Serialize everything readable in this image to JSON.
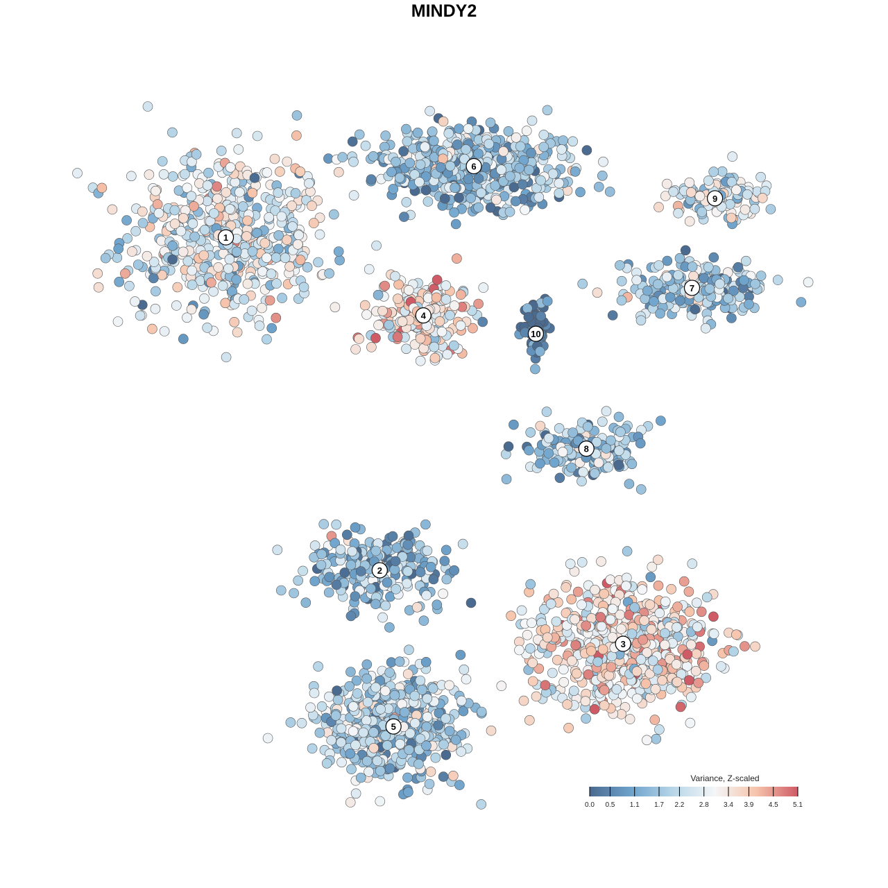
{
  "chart_data": {
    "type": "scatter",
    "title": "MINDY2",
    "colorbar": {
      "title": "Variance, Z-scaled",
      "ticks": [
        "0.0",
        "0.5",
        "1.1",
        "1.7",
        "2.2",
        "2.8",
        "3.4",
        "3.9",
        "4.5",
        "5.1"
      ],
      "range": [
        0.0,
        5.1
      ],
      "colors": [
        "#4a6a90",
        "#6ea3cc",
        "#b7d6e8",
        "#f4f6f8",
        "#f6c4ab",
        "#cf5b66"
      ]
    },
    "legend_position": "bottom-right",
    "grid": false,
    "axes_visible": false,
    "clusters": [
      {
        "label": "1",
        "center": [
          -9.5,
          9.0
        ],
        "spread": [
          4.5,
          3.8
        ],
        "mean": 2.6,
        "n": 520
      },
      {
        "label": "2",
        "center": [
          -2.8,
          -5.5
        ],
        "spread": [
          3.5,
          1.8
        ],
        "mean": 1.6,
        "n": 230
      },
      {
        "label": "3",
        "center": [
          7.8,
          -8.7
        ],
        "spread": [
          4.0,
          2.8
        ],
        "mean": 3.3,
        "n": 620
      },
      {
        "label": "4",
        "center": [
          -0.9,
          5.6
        ],
        "spread": [
          2.2,
          1.7
        ],
        "mean": 3.2,
        "n": 220
      },
      {
        "label": "5",
        "center": [
          -2.2,
          -12.3
        ],
        "spread": [
          3.2,
          2.2
        ],
        "mean": 1.9,
        "n": 520
      },
      {
        "label": "6",
        "center": [
          1.3,
          12.1
        ],
        "spread": [
          4.3,
          1.6
        ],
        "mean": 1.6,
        "n": 520
      },
      {
        "label": "7",
        "center": [
          10.8,
          6.8
        ],
        "spread": [
          3.1,
          1.4
        ],
        "mean": 1.9,
        "n": 210
      },
      {
        "label": "8",
        "center": [
          6.2,
          -0.2
        ],
        "spread": [
          2.5,
          1.3
        ],
        "mean": 1.8,
        "n": 170
      },
      {
        "label": "9",
        "center": [
          11.8,
          10.7
        ],
        "spread": [
          2.1,
          1.1
        ],
        "mean": 2.6,
        "n": 110
      },
      {
        "label": "10",
        "center": [
          4.0,
          4.8
        ],
        "spread": [
          0.6,
          1.1
        ],
        "mean": 0.2,
        "n": 55
      }
    ],
    "xlim": [
      -16,
      16
    ],
    "ylim": [
      -16,
      16
    ]
  }
}
